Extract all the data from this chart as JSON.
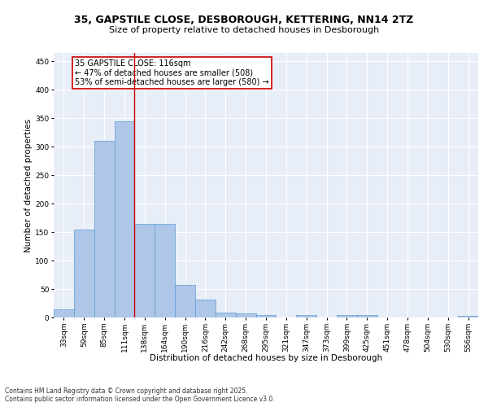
{
  "title_line1": "35, GAPSTILE CLOSE, DESBOROUGH, KETTERING, NN14 2TZ",
  "title_line2": "Size of property relative to detached houses in Desborough",
  "xlabel": "Distribution of detached houses by size in Desborough",
  "ylabel": "Number of detached properties",
  "categories": [
    "33sqm",
    "59sqm",
    "85sqm",
    "111sqm",
    "138sqm",
    "164sqm",
    "190sqm",
    "216sqm",
    "242sqm",
    "268sqm",
    "295sqm",
    "321sqm",
    "347sqm",
    "373sqm",
    "399sqm",
    "425sqm",
    "451sqm",
    "478sqm",
    "504sqm",
    "530sqm",
    "556sqm"
  ],
  "values": [
    15,
    155,
    310,
    345,
    165,
    165,
    57,
    32,
    9,
    7,
    5,
    0,
    5,
    0,
    5,
    5,
    0,
    0,
    0,
    0,
    3
  ],
  "bar_color": "#aec6e8",
  "bar_edge_color": "#5b9bd5",
  "vline_x": 3.5,
  "vline_color": "#cc0000",
  "annotation_text": "35 GAPSTILE CLOSE: 116sqm\n← 47% of detached houses are smaller (508)\n53% of semi-detached houses are larger (580) →",
  "annotation_box_color": "#cc0000",
  "ylim": [
    0,
    465
  ],
  "yticks": [
    0,
    50,
    100,
    150,
    200,
    250,
    300,
    350,
    400,
    450
  ],
  "background_color": "#e8eef8",
  "footnote": "Contains HM Land Registry data © Crown copyright and database right 2025.\nContains public sector information licensed under the Open Government Licence v3.0.",
  "title_fontsize": 9,
  "subtitle_fontsize": 8,
  "axis_label_fontsize": 7.5,
  "tick_fontsize": 6.5,
  "annotation_fontsize": 7,
  "footnote_fontsize": 5.5
}
